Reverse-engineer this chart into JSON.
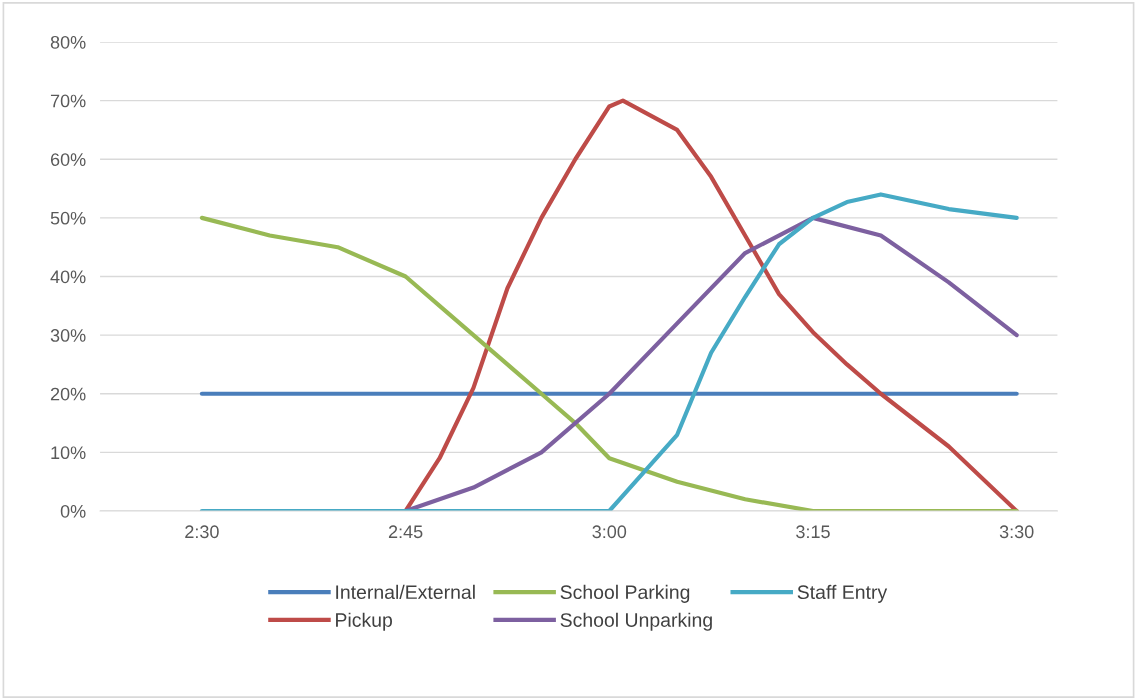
{
  "chart_data": {
    "type": "line",
    "x": [
      2.5,
      2.5833,
      2.6667,
      2.75,
      2.7917,
      2.8333,
      2.875,
      2.9167,
      2.9583,
      3.0,
      3.0167,
      3.0417,
      3.0833,
      3.125,
      3.1667,
      3.2083,
      3.25,
      3.2917,
      3.3333,
      3.4167,
      3.5
    ],
    "series": [
      {
        "name": "Internal/External",
        "color": "#4a7ebb",
        "values": [
          20,
          20,
          20,
          20,
          20,
          20,
          20,
          20,
          20,
          20,
          20,
          20,
          20,
          20,
          20,
          20,
          20,
          20,
          20,
          20,
          20
        ]
      },
      {
        "name": "Pickup",
        "color": "#be4b48",
        "values": [
          null,
          null,
          null,
          0,
          9,
          21,
          38,
          50,
          60,
          69,
          70,
          null,
          65,
          57,
          47,
          37,
          30.5,
          25,
          20,
          11,
          0
        ]
      },
      {
        "name": "School Parking",
        "color": "#98b954",
        "values": [
          50,
          47,
          45,
          40,
          35,
          30,
          25,
          20,
          15,
          9,
          null,
          null,
          5,
          null,
          2,
          null,
          0,
          null,
          0,
          0,
          0
        ]
      },
      {
        "name": "School Unparking",
        "color": "#7d60a0",
        "values": [
          null,
          null,
          null,
          0,
          null,
          4,
          null,
          10,
          null,
          20,
          null,
          null,
          32,
          null,
          44,
          null,
          50,
          null,
          47,
          39,
          30
        ]
      },
      {
        "name": "Staff Entry",
        "color": "#46aac5",
        "values": [
          0,
          0,
          0,
          0,
          0,
          0,
          0,
          0,
          0,
          0,
          null,
          6.5,
          13,
          27,
          36.5,
          45.5,
          50,
          52.7,
          54,
          51.5,
          50
        ]
      }
    ],
    "xlim": [
      2.375,
      3.55
    ],
    "xticks": [
      {
        "value": 2.5,
        "label": "2:30"
      },
      {
        "value": 2.75,
        "label": "2:45"
      },
      {
        "value": 3.0,
        "label": "3:00"
      },
      {
        "value": 3.25,
        "label": "3:15"
      },
      {
        "value": 3.5,
        "label": "3:30"
      }
    ],
    "ylim": [
      0,
      80
    ],
    "yticks": [
      {
        "value": 0,
        "label": "0%"
      },
      {
        "value": 10,
        "label": "10%"
      },
      {
        "value": 20,
        "label": "20%"
      },
      {
        "value": 30,
        "label": "30%"
      },
      {
        "value": 40,
        "label": "40%"
      },
      {
        "value": 50,
        "label": "50%"
      },
      {
        "value": 60,
        "label": "60%"
      },
      {
        "value": 70,
        "label": "70%"
      },
      {
        "value": 80,
        "label": "80%"
      }
    ],
    "grid": "y",
    "legend": "bottom",
    "marker": "none",
    "line_style": "solid"
  }
}
